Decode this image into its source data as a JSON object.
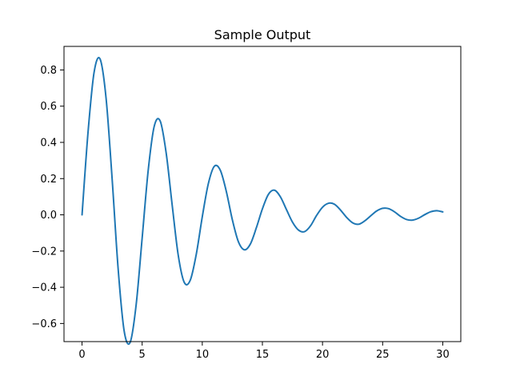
{
  "chart_data": {
    "type": "line",
    "title": "Sample Output",
    "xlabel": "",
    "ylabel": "",
    "xlim": [
      -1.5,
      31.5
    ],
    "ylim": [
      -0.7,
      0.93
    ],
    "xticks": [
      0,
      5,
      10,
      15,
      20,
      25,
      30
    ],
    "xtick_labels": [
      "0",
      "5",
      "10",
      "15",
      "20",
      "25",
      "30"
    ],
    "yticks": [
      -0.6,
      -0.4,
      -0.2,
      0.0,
      0.2,
      0.4,
      0.6,
      0.8
    ],
    "ytick_labels": [
      "−0.6",
      "−0.4",
      "−0.2",
      "0.0",
      "0.2",
      "0.4",
      "0.6",
      "0.8"
    ],
    "grid": false,
    "series": [
      {
        "color": "#1f77b4",
        "x": [
          0,
          0.5,
          1,
          1.5,
          2,
          2.5,
          3,
          3.5,
          4,
          4.5,
          5,
          5.5,
          6,
          6.5,
          7,
          7.5,
          8,
          8.5,
          9,
          9.5,
          10,
          10.5,
          11,
          11.5,
          12,
          12.5,
          13,
          13.5,
          14,
          14.5,
          15,
          15.5,
          16,
          16.5,
          17,
          17.5,
          18,
          18.5,
          19,
          19.5,
          20,
          20.5,
          21,
          21.5,
          22,
          22.5,
          23,
          23.5,
          24,
          24.5,
          25,
          25.5,
          26,
          26.5,
          27,
          27.5,
          28,
          28.5,
          29,
          29.5,
          30
        ],
        "y": [
          0.0,
          0.457,
          0.786,
          0.86,
          0.643,
          0.201,
          -0.296,
          -0.64,
          -0.704,
          -0.497,
          -0.128,
          0.244,
          0.488,
          0.518,
          0.34,
          0.052,
          -0.223,
          -0.373,
          -0.361,
          -0.218,
          -0.011,
          0.171,
          0.268,
          0.246,
          0.129,
          -0.027,
          -0.148,
          -0.193,
          -0.161,
          -0.071,
          0.033,
          0.113,
          0.136,
          0.099,
          0.029,
          -0.04,
          -0.084,
          -0.093,
          -0.061,
          -0.004,
          0.042,
          0.064,
          0.058,
          0.026,
          -0.014,
          -0.044,
          -0.052,
          -0.034,
          -0.006,
          0.021,
          0.036,
          0.034,
          0.016,
          -0.009,
          -0.026,
          -0.029,
          -0.018,
          0.001,
          0.017,
          0.023,
          0.016
        ]
      }
    ]
  }
}
